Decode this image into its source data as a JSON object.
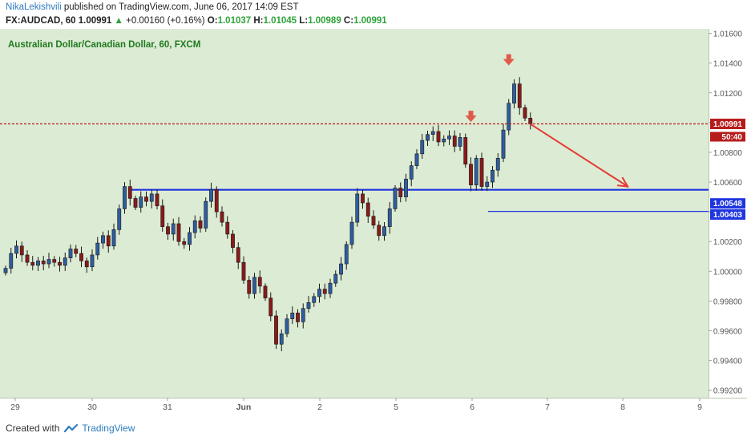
{
  "header": {
    "author": "NikaLekishvili",
    "published_text": "published on TradingView.com, June 06, 2017 14:09 EST"
  },
  "ohlc": {
    "symbol": "FX:AUDCAD, 60",
    "last": "1.00991",
    "change": "+0.00160 (+0.16%)",
    "open_label": "O:",
    "open": "1.01037",
    "high_label": "H:",
    "high": "1.01045",
    "low_label": "L:",
    "low": "1.00989",
    "close_label": "C:",
    "close": "1.00991"
  },
  "footer": {
    "created_with": "Created with",
    "brand": "TradingView"
  },
  "chart_data": {
    "type": "candlestick",
    "title": "Australian Dollar/Canadian Dollar, 60, FXCM",
    "ylim": [
      0.9915,
      1.0163
    ],
    "y_ticks": [
      "1.01600",
      "1.01400",
      "1.01200",
      "1.01000",
      "1.00800",
      "1.00600",
      "1.00400",
      "1.00200",
      "1.00000",
      "0.99800",
      "0.99600",
      "0.99400",
      "0.99200"
    ],
    "x_ticks": [
      "29",
      "30",
      "31",
      "Jun",
      "2",
      "5",
      "6",
      "7",
      "8",
      "9"
    ],
    "price_labels": {
      "current": "1.00991",
      "countdown": "50:40",
      "support_1": "1.00548",
      "support_2": "1.00403"
    },
    "support_lines": [
      1.00548,
      1.00403
    ],
    "current_price": 1.00991,
    "close_path": [
      1.0002,
      1.0012,
      1.0017,
      1.0011,
      1.0006,
      1.0004,
      1.0007,
      1.0005,
      1.0008,
      1.0006,
      1.0004,
      1.0009,
      1.0015,
      1.0012,
      1.0007,
      1.0003,
      1.0011,
      1.0019,
      1.0024,
      1.0017,
      1.0028,
      1.0042,
      1.0057,
      1.0049,
      1.0043,
      1.005,
      1.0047,
      1.0052,
      1.0044,
      1.003,
      1.0025,
      1.0032,
      1.002,
      1.0018,
      1.0026,
      1.0034,
      1.0029,
      1.0047,
      1.0055,
      1.004,
      1.0033,
      1.0025,
      1.0016,
      1.0006,
      0.9994,
      0.9985,
      0.9996,
      0.999,
      0.9982,
      0.997,
      0.9951,
      0.9958,
      0.9968,
      0.9972,
      0.9966,
      0.9975,
      0.9979,
      0.9983,
      0.9988,
      0.9985,
      0.9992,
      0.9998,
      1.0005,
      1.0018,
      1.0033,
      1.0052,
      1.0046,
      1.0037,
      1.0031,
      1.0024,
      1.003,
      1.0042,
      1.0056,
      1.005,
      1.0062,
      1.0071,
      1.0079,
      1.0088,
      1.0092,
      1.0094,
      1.0087,
      1.0089,
      1.0091,
      1.0084,
      1.009,
      1.0072,
      1.0058,
      1.0076,
      1.0057,
      1.006,
      1.0068,
      1.0076,
      1.0095,
      1.0113,
      1.0126,
      1.011,
      1.0103,
      1.0099
    ],
    "annotations": [
      {
        "type": "arrow-down-marker",
        "x_index": 86,
        "price": 1.01015
      },
      {
        "type": "arrow-down-marker",
        "x_index": 93,
        "price": 1.01395
      },
      {
        "type": "forecast-arrow",
        "from": [
          97,
          1.0099
        ],
        "to": [
          115,
          1.0057
        ]
      }
    ],
    "colors": {
      "background": "#dcebd3",
      "up_candle": "#2f5d9f",
      "down_candle": "#8a1a1a",
      "support": "#1f35e0",
      "current_price": "#b71c1c",
      "forecast_arrow": "#e53935",
      "marker": "#e05a4a",
      "title_text": "#1f7a1f"
    },
    "grid": false
  }
}
